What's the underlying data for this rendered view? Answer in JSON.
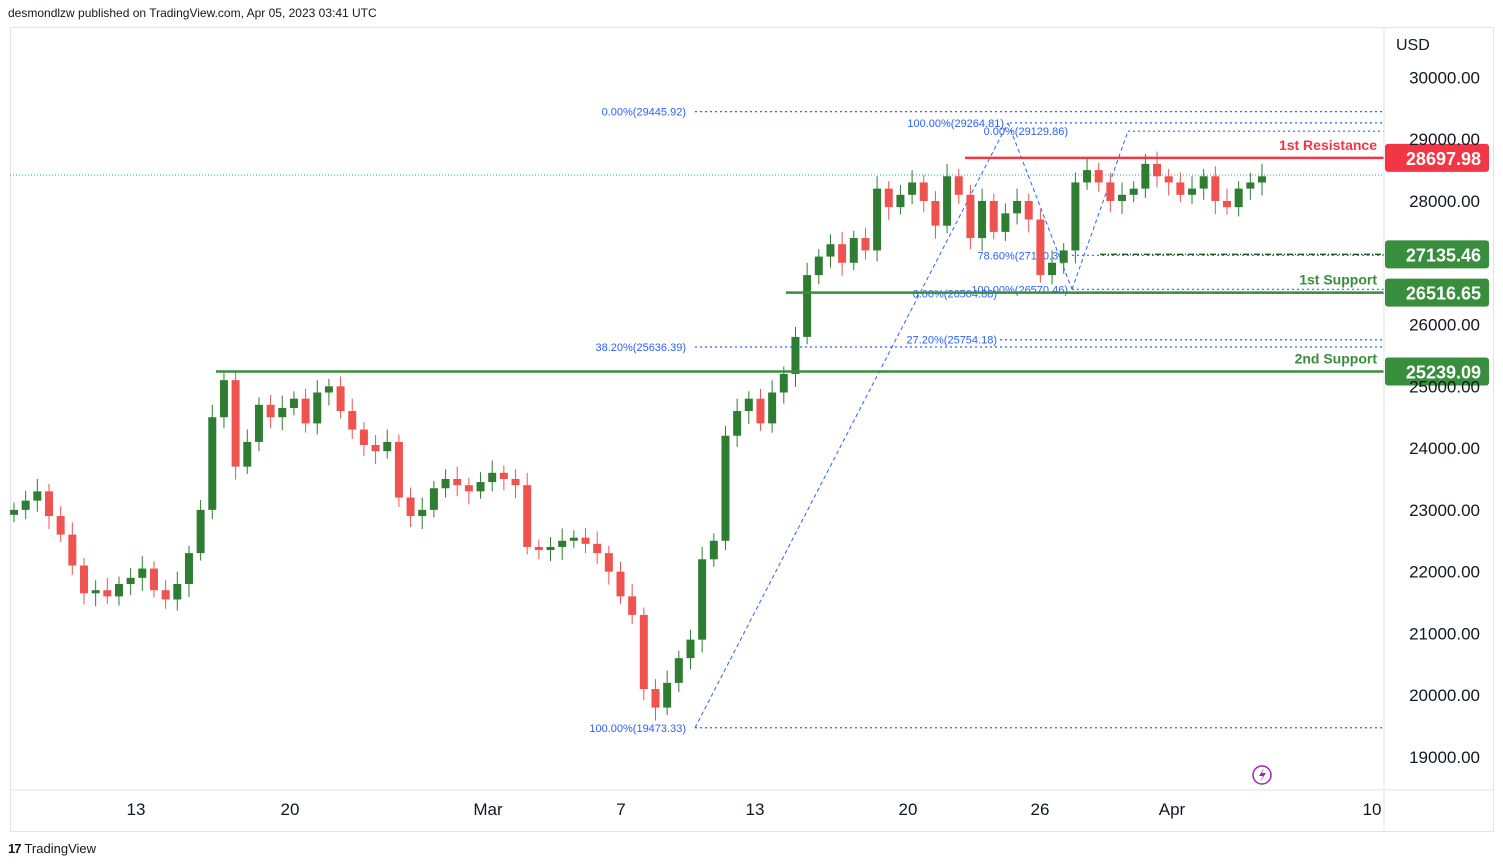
{
  "header": {
    "publisher_line": "desmondlzw published on TradingView.com, Apr 05, 2023 03:41 UTC"
  },
  "footer": {
    "brand": "TradingView",
    "logo_icon": "tradingview-logo-icon"
  },
  "colors": {
    "up": "#26a69a",
    "up_fill": "#2e7d32",
    "down": "#ef5350",
    "resistance": "#f23645",
    "support": "#388e3c",
    "fib": "#2962ff"
  },
  "chart_data": {
    "type": "candlestick",
    "currency_label": "USD",
    "y_ticks": [
      "30000.00",
      "29000.00",
      "28000.00",
      "26000.00",
      "25000.00",
      "24000.00",
      "23000.00",
      "22000.00",
      "21000.00",
      "20000.00",
      "19000.00"
    ],
    "x_ticks": [
      "13",
      "20",
      "Mar",
      "7",
      "13",
      "20",
      "26",
      "Apr",
      "10"
    ],
    "levels": [
      {
        "label": "1st Resistance",
        "value": "28697.98",
        "kind": "resistance"
      },
      {
        "label": "",
        "value": "27135.46",
        "kind": "support"
      },
      {
        "label": "1st Support",
        "value": "26516.65",
        "kind": "support"
      },
      {
        "label": "2nd Support",
        "value": "25239.09",
        "kind": "support"
      }
    ],
    "fib_labels": [
      {
        "text": "0.00%(29445.92)",
        "price": 29445.92
      },
      {
        "text": "100.00%(29264.81)",
        "price": 29264.81
      },
      {
        "text": "0.00%(29129.86)",
        "price": 29129.86
      },
      {
        "text": "78.60%(27120.31)",
        "price": 27120.31
      },
      {
        "text": "100.00%(26570.46)",
        "price": 26570.46
      },
      {
        "text": "0.00%(26504.88)",
        "price": 26504.88
      },
      {
        "text": "27.20%(25754.18)",
        "price": 25754.18
      },
      {
        "text": "38.20%(25636.39)",
        "price": 25636.39
      },
      {
        "text": "100.00%(19473.33)",
        "price": 19473.33
      }
    ],
    "close_series": [
      23000,
      23150,
      23300,
      22900,
      22600,
      22100,
      21650,
      21700,
      21600,
      21800,
      21900,
      22050,
      21700,
      21550,
      21800,
      22300,
      23000,
      24500,
      25100,
      23700,
      24100,
      24700,
      24500,
      24650,
      24800,
      24400,
      24900,
      25000,
      24600,
      24300,
      24050,
      23950,
      24100,
      23200,
      22900,
      23000,
      23350,
      23500,
      23400,
      23300,
      23450,
      23600,
      23500,
      23400,
      22400,
      22350,
      22400,
      22500,
      22550,
      22450,
      22300,
      22000,
      21600,
      21300,
      20100,
      19800,
      20200,
      20600,
      20900,
      22200,
      22500,
      24200,
      24600,
      24800,
      24400,
      24900,
      25200,
      25800,
      26800,
      27100,
      27300,
      27000,
      27400,
      27200,
      28200,
      27900,
      28100,
      28300,
      28000,
      27600,
      28400,
      28100,
      27400,
      28000,
      27500,
      27800,
      28000,
      27700,
      26800,
      27000,
      27200,
      28300,
      28500,
      28300,
      28000,
      28100,
      28200,
      28600,
      28400,
      28300,
      28100,
      28200,
      28400,
      28000,
      27900,
      28200,
      28300,
      28400
    ]
  }
}
